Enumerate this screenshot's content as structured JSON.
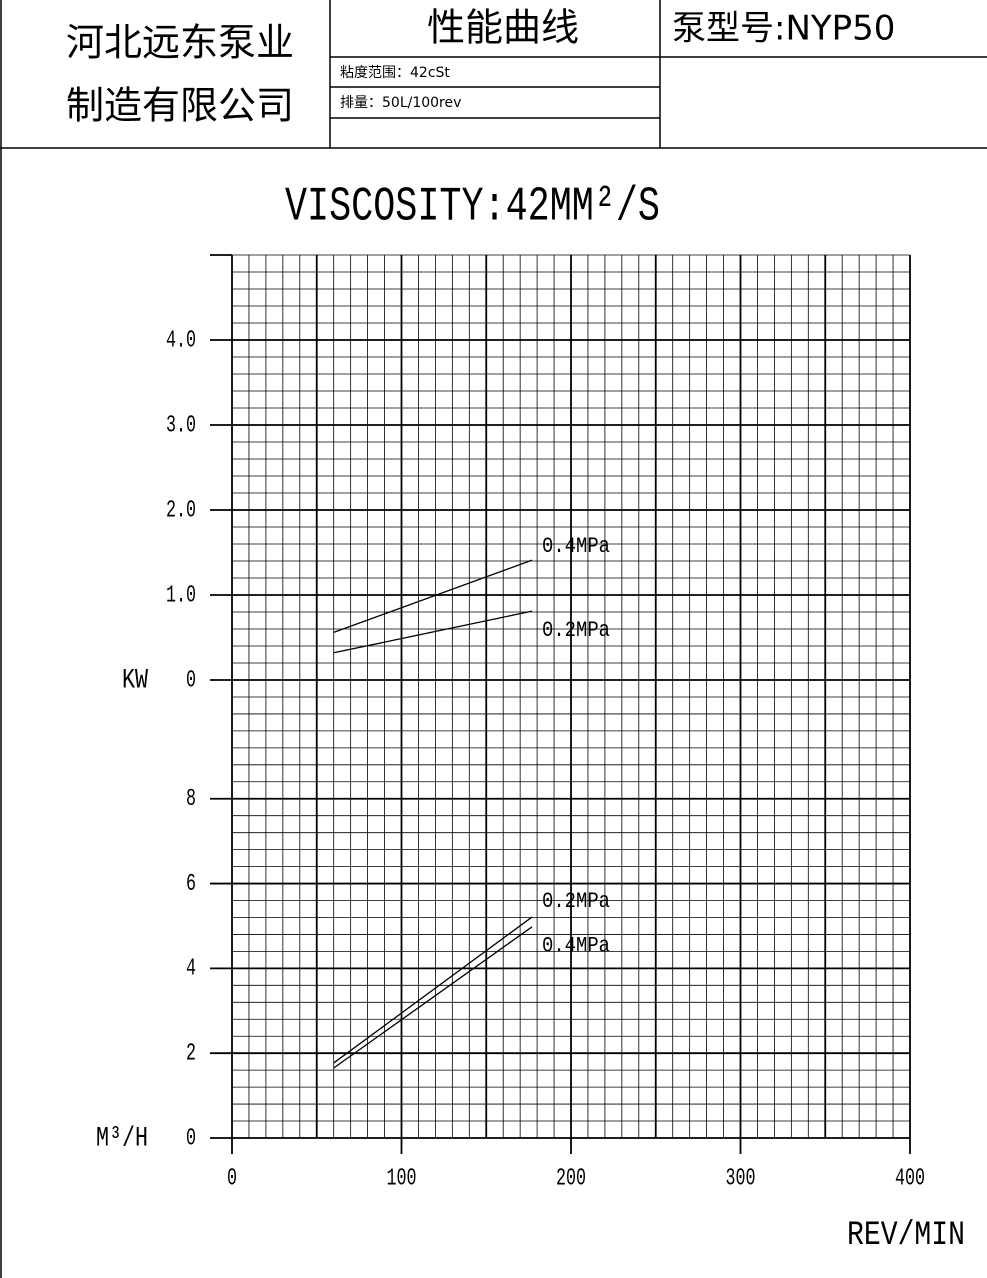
{
  "header": {
    "company_lines": [
      "河北远东泵业",
      "制造有限公司"
    ],
    "title": "性能曲线",
    "viscosity": "粘度范围：42cSt",
    "displacement": "排量：50L/100rev",
    "model": "泵型号:NYP50"
  },
  "chart_data": [
    {
      "type": "line",
      "title": "VISCOSITY:42MM²/S",
      "ylabel": "KW",
      "xlim": [
        0,
        400
      ],
      "ylim": [
        0,
        5
      ],
      "yticks": [
        0,
        {
          "value": 1,
          "label": "1.0"
        },
        {
          "value": 2,
          "label": "2.0"
        },
        {
          "value": 3,
          "label": "3.0"
        },
        {
          "value": 4,
          "label": "4.0"
        }
      ],
      "grid": true,
      "x": [
        60,
        177
      ],
      "series": [
        {
          "name": "0.4MPa",
          "color": "#000000",
          "values": [
            0.56,
            1.41
          ]
        },
        {
          "name": "0.2MPa",
          "color": "#000000",
          "values": [
            0.32,
            0.81
          ]
        }
      ]
    },
    {
      "type": "line",
      "ylabel": "M³/H",
      "xlabel": "REV/MIN",
      "xlim": [
        0,
        400
      ],
      "xticks": [
        0,
        100,
        200,
        300,
        400
      ],
      "ylim": [
        0,
        10.8
      ],
      "yticks": [
        0,
        2,
        4,
        6,
        8
      ],
      "grid": true,
      "x": [
        60,
        177
      ],
      "series": [
        {
          "name": "0.2MPa",
          "color": "#000000",
          "values": [
            1.77,
            5.21
          ]
        },
        {
          "name": "0.4MPa",
          "color": "#000000",
          "values": [
            1.65,
            4.98
          ]
        }
      ]
    }
  ]
}
